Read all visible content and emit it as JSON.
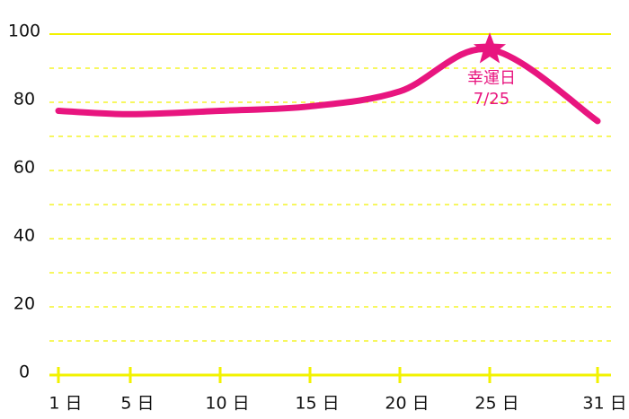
{
  "chart_data": {
    "type": "line",
    "x": [
      1,
      5,
      10,
      15,
      20,
      25,
      31
    ],
    "series": [
      {
        "color": "#e8157f",
        "values": [
          77.5,
          76.5,
          77.5,
          78.8,
          83.2,
          95.5,
          74.5
        ]
      }
    ],
    "xlim": [
      0.5,
      31.75
    ],
    "xticks": [
      {
        "value": 1,
        "label": "1 日"
      },
      {
        "value": 5,
        "label": "5 日"
      },
      {
        "value": 10,
        "label": "10 日"
      },
      {
        "value": 15,
        "label": "15 日"
      },
      {
        "value": 20,
        "label": "20 日"
      },
      {
        "value": 25,
        "label": "25 日"
      },
      {
        "value": 31,
        "label": "31 日"
      }
    ],
    "ylim": [
      0,
      100
    ],
    "yticks": [
      0,
      20,
      40,
      60,
      80,
      100
    ],
    "ygrid_minor": [
      10,
      30,
      50,
      70,
      90
    ],
    "grid": true,
    "grid_color": "#f2f200",
    "annotation": {
      "x": 25,
      "y": 95.5,
      "lines": [
        "幸運日",
        "7/25"
      ]
    }
  }
}
